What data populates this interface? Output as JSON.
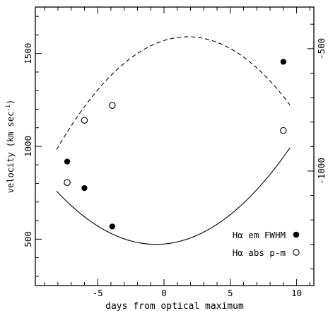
{
  "chart_data": {
    "type": "scatter",
    "xlabel": "days from optical maximum",
    "ylabel_left": "velocity (km sec",
    "ylabel_left_sup": "-1",
    "ylabel_left_end": ")",
    "xlim": [
      -9.7,
      11.3
    ],
    "ylim_left": [
      250,
      1750
    ],
    "ylim_right": [
      -1000,
      -500
    ],
    "right_axis_ylim": [
      -1468,
      -330
    ],
    "x_ticks": [
      -5,
      0,
      5,
      10
    ],
    "x_tick_labels": [
      "-5",
      "0",
      "5",
      "10"
    ],
    "y_ticks_left": [
      500,
      1000,
      1500
    ],
    "y_tick_labels_left": [
      "500",
      "1000",
      "1500"
    ],
    "y_ticks_right": [
      -1000,
      -500
    ],
    "y_tick_labels_right": [
      "-1000",
      "-500"
    ],
    "series": [
      {
        "name": "Hα em FWHM",
        "marker": "filled-circle",
        "line": "solid",
        "points": [
          [
            -7.3,
            918
          ],
          [
            -6.0,
            775
          ],
          [
            -3.9,
            568
          ],
          [
            9.0,
            1455
          ]
        ],
        "fit_quadratic": [
          472,
          -0.6,
          5.1
        ],
        "fit_range": [
          -8.1,
          9.5
        ]
      },
      {
        "name": "Hα abs p-m",
        "marker": "open-circle",
        "line": "dashed",
        "points": [
          [
            -7.3,
            805
          ],
          [
            -6.0,
            1140
          ],
          [
            -3.9,
            1220
          ],
          [
            9.0,
            1085
          ]
        ],
        "fit_quadratic": [
          1590,
          1.8,
          -6.2
        ],
        "fit_range": [
          -8.1,
          9.5
        ]
      }
    ],
    "legend": {
      "placement": "bottom-right",
      "entries": [
        {
          "label": "Hα em FWHM",
          "marker": "filled-circle"
        },
        {
          "label": "Hα abs p-m",
          "marker": "open-circle"
        }
      ]
    },
    "grid": false
  }
}
